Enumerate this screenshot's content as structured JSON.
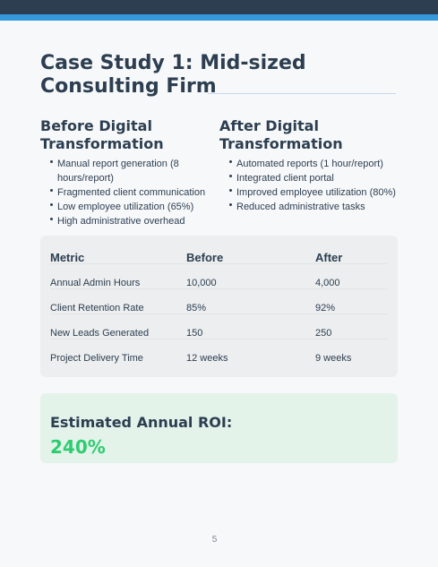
{
  "title": "Case Study 1: Mid-sized Consulting Firm",
  "before": {
    "heading": "Before Digital Transformation",
    "items": [
      "Manual report generation (8 hours/report)",
      "Fragmented client communication",
      "Low employee utilization (65%)",
      "High administrative overhead"
    ]
  },
  "after": {
    "heading": "After Digital Transformation",
    "items": [
      "Automated reports (1 hour/report)",
      "Integrated client portal",
      "Improved employee utilization (80%)",
      "Reduced administrative tasks"
    ]
  },
  "table": {
    "headers": [
      "Metric",
      "Before",
      "After"
    ],
    "rows": [
      [
        "Annual Admin Hours",
        "10,000",
        "4,000"
      ],
      [
        "Client Retention Rate",
        "85%",
        "92%"
      ],
      [
        "New Leads Generated",
        "150",
        "250"
      ],
      [
        "Project Delivery Time",
        "12 weeks",
        "9 weeks"
      ]
    ]
  },
  "roi": {
    "label": "Estimated Annual ROI:",
    "value": "240%"
  },
  "page_number": "5",
  "colors": {
    "header_bar": "#2c3e50",
    "accent_bar": "#3498db",
    "text": "#2c3e50",
    "roi_value": "#2ecc71",
    "roi_background": "#e3f3ea",
    "table_background": "#eceeef"
  }
}
